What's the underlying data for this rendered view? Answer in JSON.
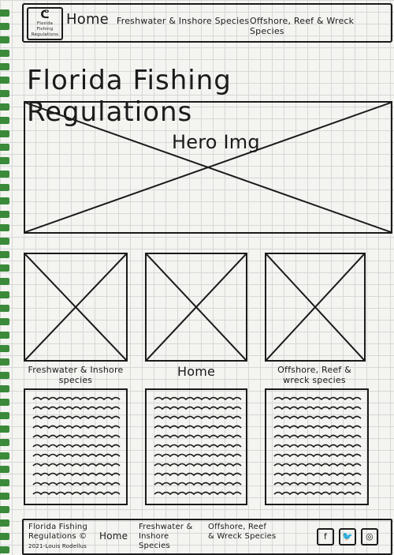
{
  "header": {
    "logo_line1": "Florida Fishing",
    "logo_line2": "Regulations",
    "nav": [
      "Home",
      "Freshwater & Inshore Species",
      "Offshore, Reef & Wreck Species"
    ]
  },
  "page_title": "Florida Fishing Regulations",
  "hero": {
    "label": "Hero Img"
  },
  "cards": [
    {
      "label": "Freshwater & Inshore species"
    },
    {
      "label": "Home"
    },
    {
      "label": "Offshore, Reef & wreck species"
    }
  ],
  "footer": {
    "brand_line1": "Florida Fishing",
    "brand_line2": "Regulations ©",
    "copyright": "2021-Louis Rodellus",
    "nav_home": "Home",
    "nav_fresh_line1": "Freshwater &",
    "nav_fresh_line2": "Inshore",
    "nav_fresh_line3": "Species",
    "nav_offshore_line1": "Offshore, Reef",
    "nav_offshore_line2": "& Wreck Species",
    "social_icons": [
      "facebook-icon",
      "twitter-icon",
      "instagram-icon"
    ]
  },
  "colors": {
    "ink": "#1b1b1b",
    "grid": "#d7d9d6",
    "paper": "#f4f4f1",
    "binding": "#3a8a3a"
  }
}
